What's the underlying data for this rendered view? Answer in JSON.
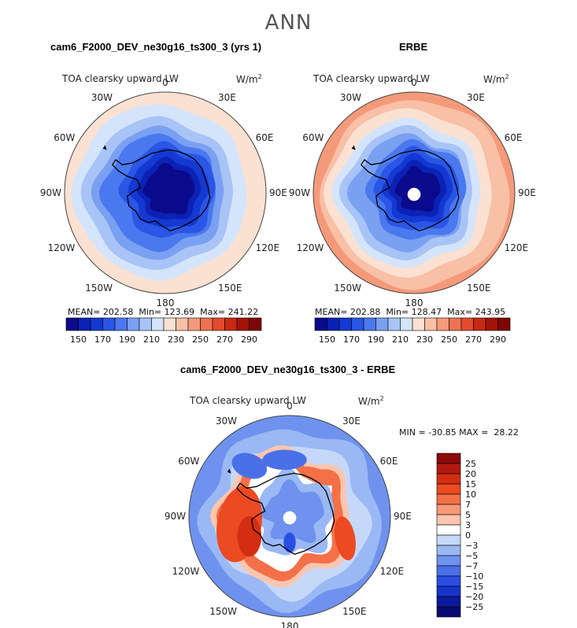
{
  "figure": {
    "title": "ANN"
  },
  "chart_data": [
    {
      "type": "heatmap",
      "projection": "south-polar-stereographic",
      "title": "cam6_F2000_DEV_ne30g16_ts300_3 (yrs 1)",
      "variable": "TOA clearsky upward LW",
      "units": "W/m",
      "units_exp": "2",
      "lon_labels": [
        "0",
        "30E",
        "60E",
        "90E",
        "120E",
        "150E",
        "180",
        "150W",
        "120W",
        "90W",
        "60W",
        "30W"
      ],
      "stats": {
        "mean_label": "MEAN= 202.58",
        "min_label": "Min= 123.69",
        "max_label": "Max= 241.22",
        "mean": 202.58,
        "min": 123.69,
        "max": 241.22
      },
      "colorbar": {
        "ticks": [
          "150",
          "170",
          "190",
          "210",
          "230",
          "250",
          "270",
          "290"
        ]
      }
    },
    {
      "type": "heatmap",
      "projection": "south-polar-stereographic",
      "title": "ERBE",
      "variable": "TOA clearsky upward LW",
      "units": "W/m",
      "units_exp": "2",
      "lon_labels": [
        "0",
        "30E",
        "60E",
        "90E",
        "120E",
        "150E",
        "180",
        "150W",
        "120W",
        "90W",
        "60W",
        "30W"
      ],
      "stats": {
        "mean_label": "MEAN= 202.88",
        "min_label": "Min= 128.47",
        "max_label": "Max= 243.95",
        "mean": 202.88,
        "min": 128.47,
        "max": 243.95
      },
      "colorbar": {
        "ticks": [
          "150",
          "170",
          "190",
          "210",
          "230",
          "250",
          "270",
          "290"
        ]
      }
    },
    {
      "type": "heatmap",
      "projection": "south-polar-stereographic",
      "title": "cam6_F2000_DEV_ne30g16_ts300_3 - ERBE",
      "variable": "TOA clearsky upward LW",
      "units": "W/m",
      "units_exp": "2",
      "lon_labels": [
        "0",
        "30E",
        "60E",
        "90E",
        "120E",
        "150E",
        "180",
        "150W",
        "120W",
        "90W",
        "60W",
        "30W"
      ],
      "stats": {
        "minmax_label": "MIN = -30.85 MAX =  28.22",
        "min": -30.85,
        "max": 28.22
      },
      "colorbar": {
        "ticks": [
          "25",
          "20",
          "15",
          "10",
          "7",
          "5",
          "3",
          "0",
          "−3",
          "−5",
          "−7",
          "−10",
          "−15",
          "−20",
          "−25"
        ]
      }
    }
  ],
  "palettes": {
    "absolute": [
      "#0a0a8c",
      "#0b22b4",
      "#1438d2",
      "#2a56e6",
      "#4a78ee",
      "#7aa0f2",
      "#a8c4f6",
      "#d4e4fa",
      "#fbe1d2",
      "#f8c0a6",
      "#f49a7a",
      "#ee7252",
      "#e44a2c",
      "#c82a14",
      "#a41408",
      "#7e0606"
    ],
    "diff": [
      "#8c0a0a",
      "#b31a0e",
      "#d42e12",
      "#ec4a22",
      "#f47048",
      "#f89a78",
      "#fbc6ae",
      "#ffffff",
      "#c6d8fa",
      "#9ab8f4",
      "#6e92ee",
      "#4a70e8",
      "#2a4ee4",
      "#1634cc",
      "#0a1a9c",
      "#080a70"
    ]
  },
  "land": {
    "color": "#000000"
  },
  "pole_hole_color": "#ffffff"
}
